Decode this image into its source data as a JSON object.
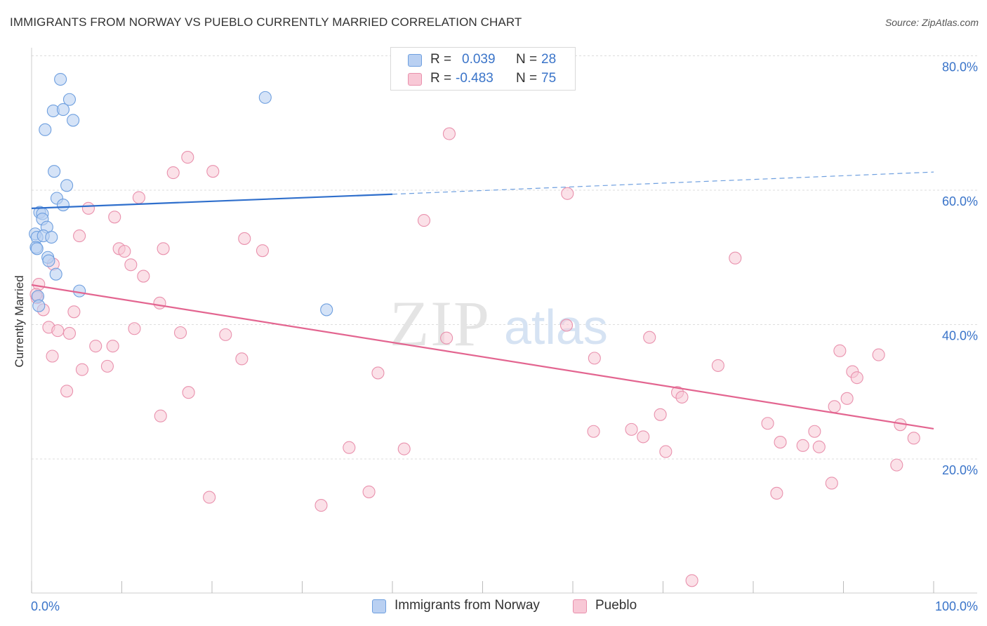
{
  "title": "IMMIGRANTS FROM NORWAY VS PUEBLO CURRENTLY MARRIED CORRELATION CHART",
  "source": "Source: ZipAtlas.com",
  "watermark": {
    "zip": "ZIP",
    "atlas": "atlas"
  },
  "colors": {
    "norway_fill": "#b9d0f2",
    "norway_stroke": "#6e9fdf",
    "norway_line": "#2f6fcc",
    "pueblo_fill": "#f8c8d6",
    "pueblo_stroke": "#e991ad",
    "pueblo_line": "#e36590",
    "axis_label": "#3a74c9",
    "grid": "#dddddd"
  },
  "legend_top": {
    "rows": [
      {
        "r_label": "R =",
        "r_value": "0.039",
        "n_label": "N =",
        "n_value": "28"
      },
      {
        "r_label": "R =",
        "r_value": "-0.483",
        "n_label": "N =",
        "n_value": "75"
      }
    ]
  },
  "legend_bottom": {
    "items": [
      "Immigrants from Norway",
      "Pueblo"
    ]
  },
  "chart_data": {
    "type": "scatter",
    "title": "IMMIGRANTS FROM NORWAY VS PUEBLO CURRENTLY MARRIED CORRELATION CHART",
    "xlabel": "",
    "ylabel": "Currently Married",
    "xlim": [
      0,
      100
    ],
    "ylim": [
      0,
      82
    ],
    "x_tick_labels": [
      "0.0%",
      "100.0%"
    ],
    "y_ticks": [
      20,
      40,
      60,
      80
    ],
    "y_tick_labels": [
      "20.0%",
      "40.0%",
      "60.0%",
      "80.0%"
    ],
    "grid": true,
    "legend_position": "top-center",
    "series": [
      {
        "name": "Immigrants from Norway",
        "r": 0.039,
        "n": 28,
        "trend": {
          "x0": 0,
          "y0": 57.3,
          "x1": 40,
          "y1": 59.4,
          "dash_x1": 100,
          "dash_y1": 62.7
        },
        "points": [
          [
            3.2,
            76.5
          ],
          [
            4.2,
            73.5
          ],
          [
            2.4,
            71.8
          ],
          [
            3.5,
            72.0
          ],
          [
            4.6,
            70.4
          ],
          [
            1.5,
            69.0
          ],
          [
            25.9,
            73.8
          ],
          [
            2.5,
            62.8
          ],
          [
            3.9,
            60.7
          ],
          [
            2.8,
            58.8
          ],
          [
            3.5,
            57.8
          ],
          [
            0.9,
            56.7
          ],
          [
            1.2,
            56.5
          ],
          [
            1.2,
            55.7
          ],
          [
            1.7,
            54.5
          ],
          [
            0.4,
            53.5
          ],
          [
            0.6,
            53.0
          ],
          [
            1.3,
            53.2
          ],
          [
            2.2,
            53.0
          ],
          [
            0.5,
            51.5
          ],
          [
            0.6,
            51.3
          ],
          [
            1.8,
            50.0
          ],
          [
            1.9,
            49.5
          ],
          [
            2.7,
            47.5
          ],
          [
            5.3,
            45.0
          ],
          [
            0.7,
            44.2
          ],
          [
            32.7,
            42.2
          ],
          [
            0.8,
            42.8
          ]
        ]
      },
      {
        "name": "Pueblo",
        "r": -0.483,
        "n": 75,
        "trend": {
          "x0": 0,
          "y0": 45.9,
          "x1": 100,
          "y1": 24.5
        },
        "points": [
          [
            46.3,
            68.4
          ],
          [
            17.3,
            64.9
          ],
          [
            15.7,
            62.6
          ],
          [
            20.1,
            62.8
          ],
          [
            59.4,
            59.5
          ],
          [
            11.9,
            58.9
          ],
          [
            6.3,
            57.3
          ],
          [
            9.2,
            56.0
          ],
          [
            43.5,
            55.5
          ],
          [
            5.3,
            53.2
          ],
          [
            23.6,
            52.8
          ],
          [
            9.7,
            51.3
          ],
          [
            14.6,
            51.3
          ],
          [
            10.3,
            50.9
          ],
          [
            25.6,
            51.0
          ],
          [
            78.0,
            49.9
          ],
          [
            2.4,
            49.0
          ],
          [
            11.0,
            48.9
          ],
          [
            12.4,
            47.2
          ],
          [
            0.6,
            44.0
          ],
          [
            0.8,
            46.0
          ],
          [
            1.3,
            42.2
          ],
          [
            14.2,
            43.2
          ],
          [
            4.7,
            41.9
          ],
          [
            59.3,
            39.9
          ],
          [
            1.9,
            39.6
          ],
          [
            2.9,
            39.1
          ],
          [
            11.4,
            39.4
          ],
          [
            16.5,
            38.8
          ],
          [
            4.2,
            38.7
          ],
          [
            21.5,
            38.5
          ],
          [
            46.0,
            38.0
          ],
          [
            68.5,
            38.1
          ],
          [
            7.1,
            36.8
          ],
          [
            9.0,
            36.8
          ],
          [
            2.3,
            35.3
          ],
          [
            23.3,
            34.9
          ],
          [
            62.4,
            35.0
          ],
          [
            76.1,
            33.9
          ],
          [
            89.6,
            36.1
          ],
          [
            93.9,
            35.5
          ],
          [
            8.4,
            33.8
          ],
          [
            5.6,
            33.3
          ],
          [
            38.4,
            32.8
          ],
          [
            91.0,
            33.0
          ],
          [
            91.5,
            32.1
          ],
          [
            3.9,
            30.1
          ],
          [
            17.4,
            29.9
          ],
          [
            71.6,
            29.9
          ],
          [
            72.1,
            29.2
          ],
          [
            90.4,
            29.0
          ],
          [
            89.0,
            27.8
          ],
          [
            14.3,
            26.4
          ],
          [
            69.7,
            26.6
          ],
          [
            81.6,
            25.3
          ],
          [
            96.3,
            25.1
          ],
          [
            66.5,
            24.4
          ],
          [
            62.3,
            24.1
          ],
          [
            86.8,
            24.1
          ],
          [
            67.8,
            23.3
          ],
          [
            97.8,
            23.1
          ],
          [
            83.0,
            22.5
          ],
          [
            35.2,
            21.7
          ],
          [
            41.3,
            21.5
          ],
          [
            85.5,
            22.0
          ],
          [
            87.3,
            21.8
          ],
          [
            70.3,
            21.1
          ],
          [
            95.9,
            19.1
          ],
          [
            88.7,
            16.4
          ],
          [
            82.6,
            14.9
          ],
          [
            37.4,
            15.1
          ],
          [
            19.7,
            14.3
          ],
          [
            32.1,
            13.1
          ],
          [
            73.2,
            1.9
          ],
          [
            0.5,
            44.5
          ]
        ]
      }
    ]
  }
}
